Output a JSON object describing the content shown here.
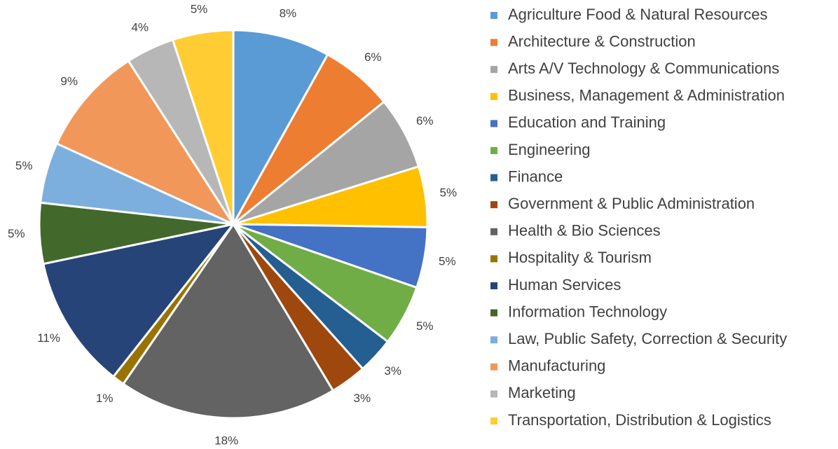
{
  "chart_data": {
    "type": "pie",
    "categories": [
      "Agriculture Food & Natural Resources",
      "Architecture & Construction",
      "Arts A/V Technology & Communications",
      "Business, Management & Administration",
      "Education and Training",
      "Engineering",
      "Finance",
      "Government & Public Administration",
      "Health & Bio Sciences",
      "Hospitality & Tourism",
      "Human Services",
      "Information Technology",
      "Law, Public Safety, Correction & Security",
      "Manufacturing",
      "Marketing",
      "Transportation, Distribution & Logistics"
    ],
    "values": [
      8,
      6,
      6,
      5,
      5,
      5,
      3,
      3,
      18,
      1,
      11,
      5,
      5,
      9,
      4,
      5
    ],
    "value_labels": [
      "8%",
      "6%",
      "6%",
      "5%",
      "5%",
      "5%",
      "3%",
      "3%",
      "18%",
      "1%",
      "11%",
      "5%",
      "5%",
      "9%",
      "4%",
      "5%"
    ],
    "colors": [
      "#5b9bd5",
      "#ed7d31",
      "#a5a5a5",
      "#ffc000",
      "#4472c4",
      "#70ad47",
      "#255e91",
      "#9e480e",
      "#636363",
      "#997300",
      "#264478",
      "#43682b",
      "#7cafdd",
      "#f1975a",
      "#b7b7b7",
      "#ffcd33"
    ],
    "legend": "right"
  }
}
